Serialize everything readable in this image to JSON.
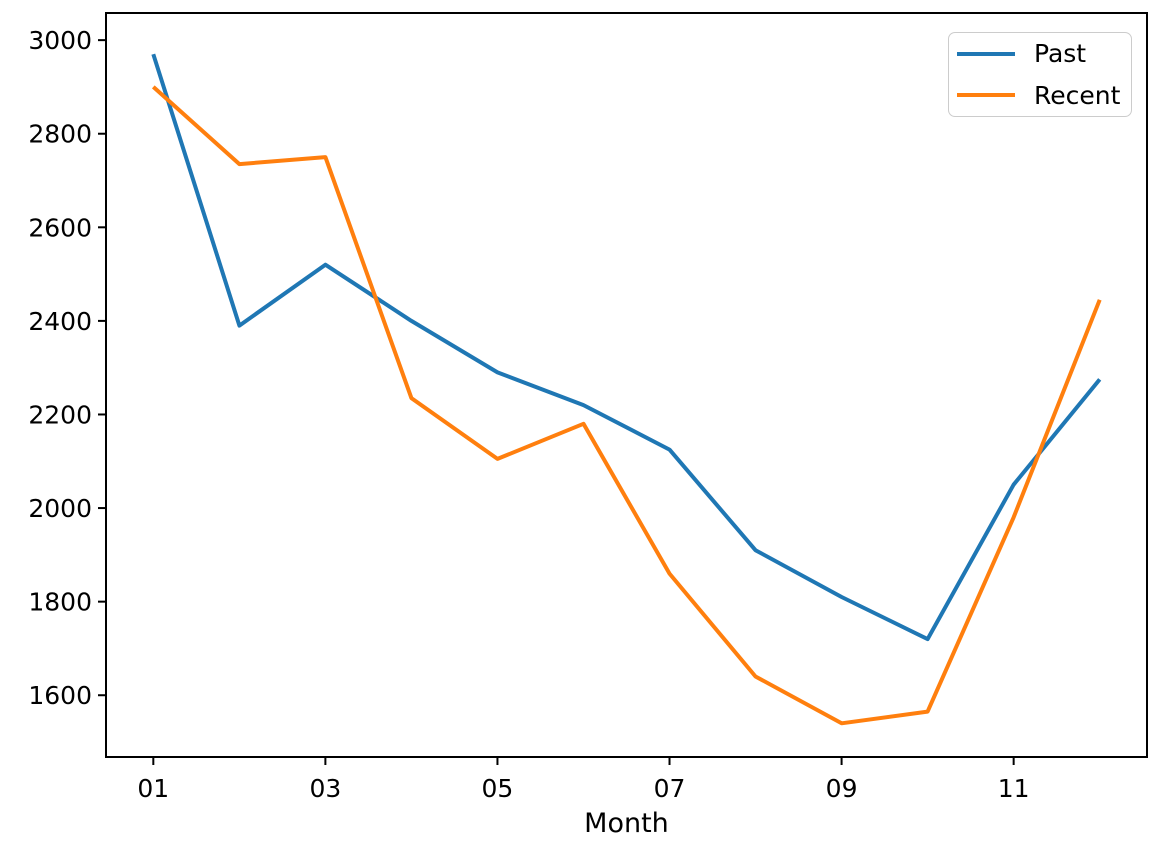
{
  "chart_data": {
    "type": "line",
    "title": "",
    "xlabel": "Month",
    "ylabel": "",
    "grid": false,
    "legend_position": "upper right",
    "xlim": [
      0.45,
      12.55
    ],
    "ylim": [
      1468,
      3058
    ],
    "x": [
      1,
      2,
      3,
      4,
      5,
      6,
      7,
      8,
      9,
      10,
      11,
      12
    ],
    "x_tick_values": [
      1,
      3,
      5,
      7,
      9,
      11
    ],
    "x_tick_labels": [
      "01",
      "03",
      "05",
      "07",
      "09",
      "11"
    ],
    "y_tick_values": [
      1600,
      1800,
      2000,
      2200,
      2400,
      2600,
      2800,
      3000
    ],
    "series": [
      {
        "name": "Past",
        "color": "#1f77b4",
        "values": [
          2970,
          2390,
          2520,
          2400,
          2290,
          2220,
          2125,
          1910,
          1810,
          1720,
          2050,
          2275
        ]
      },
      {
        "name": "Recent",
        "color": "#ff7f0e",
        "values": [
          2900,
          2735,
          2750,
          2235,
          2105,
          2180,
          1860,
          1640,
          1540,
          1565,
          1980,
          2445
        ]
      }
    ],
    "axis_color": "#000000",
    "text_color": "#000000",
    "background_color": "#ffffff"
  }
}
